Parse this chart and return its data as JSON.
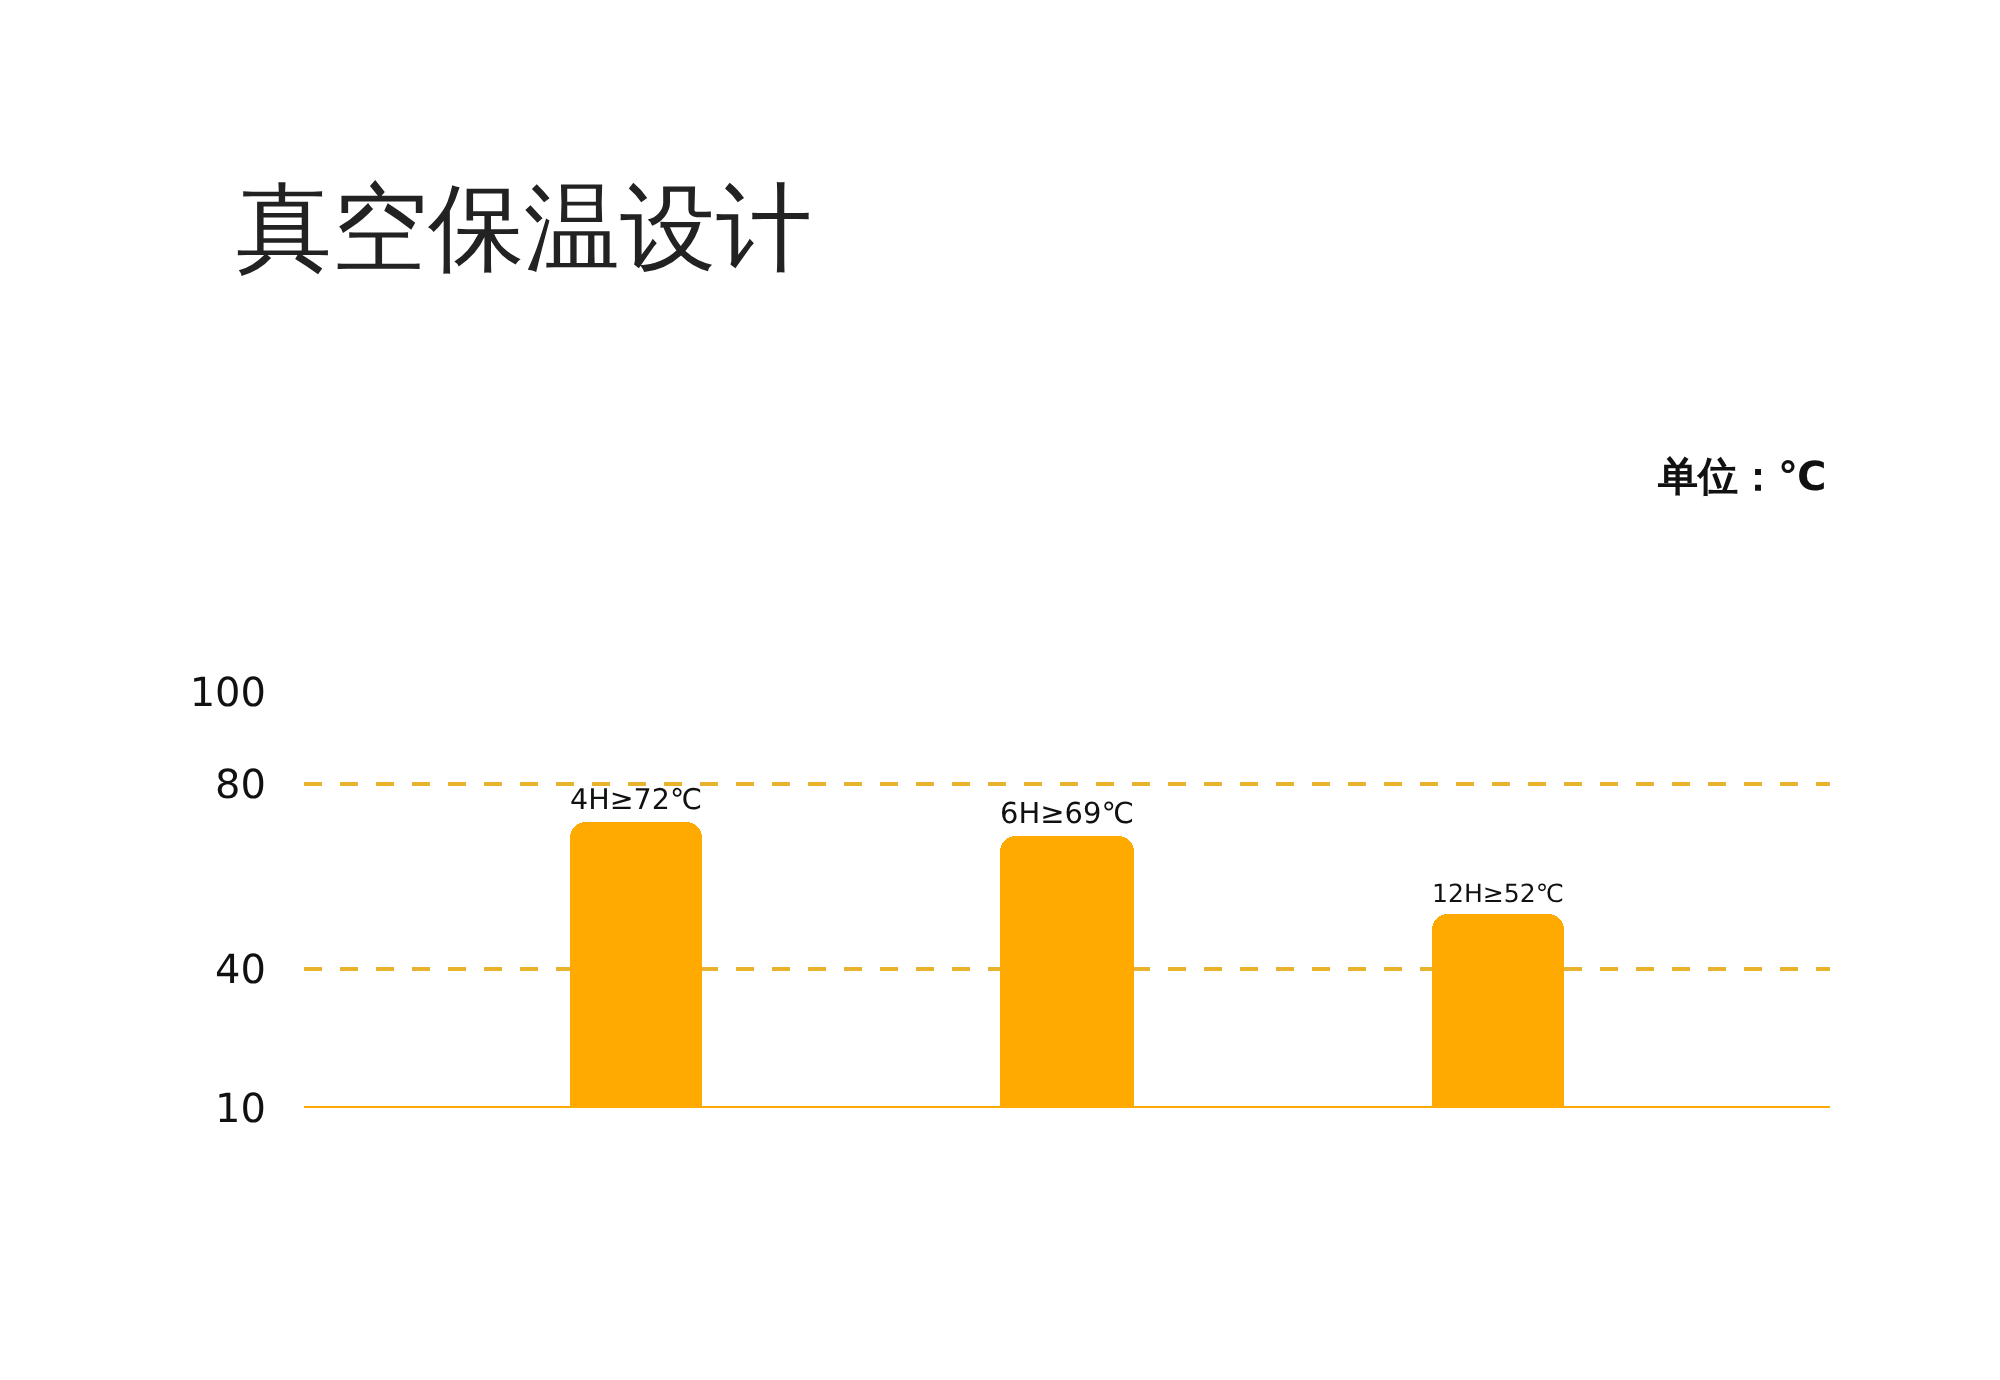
{
  "chart_data": {
    "type": "bar",
    "title": "真空保温设计",
    "ylabel": "单位：℃",
    "categories": [
      null,
      null,
      null
    ],
    "values": [
      72,
      69,
      52
    ],
    "value_labels": [
      "4H≥72℃",
      "6H≥69℃",
      "12H≥52℃"
    ],
    "color": "#ffaa00",
    "ylim": [
      10,
      100
    ],
    "yticks": [
      10,
      40,
      80,
      100
    ],
    "grid": "y"
  }
}
